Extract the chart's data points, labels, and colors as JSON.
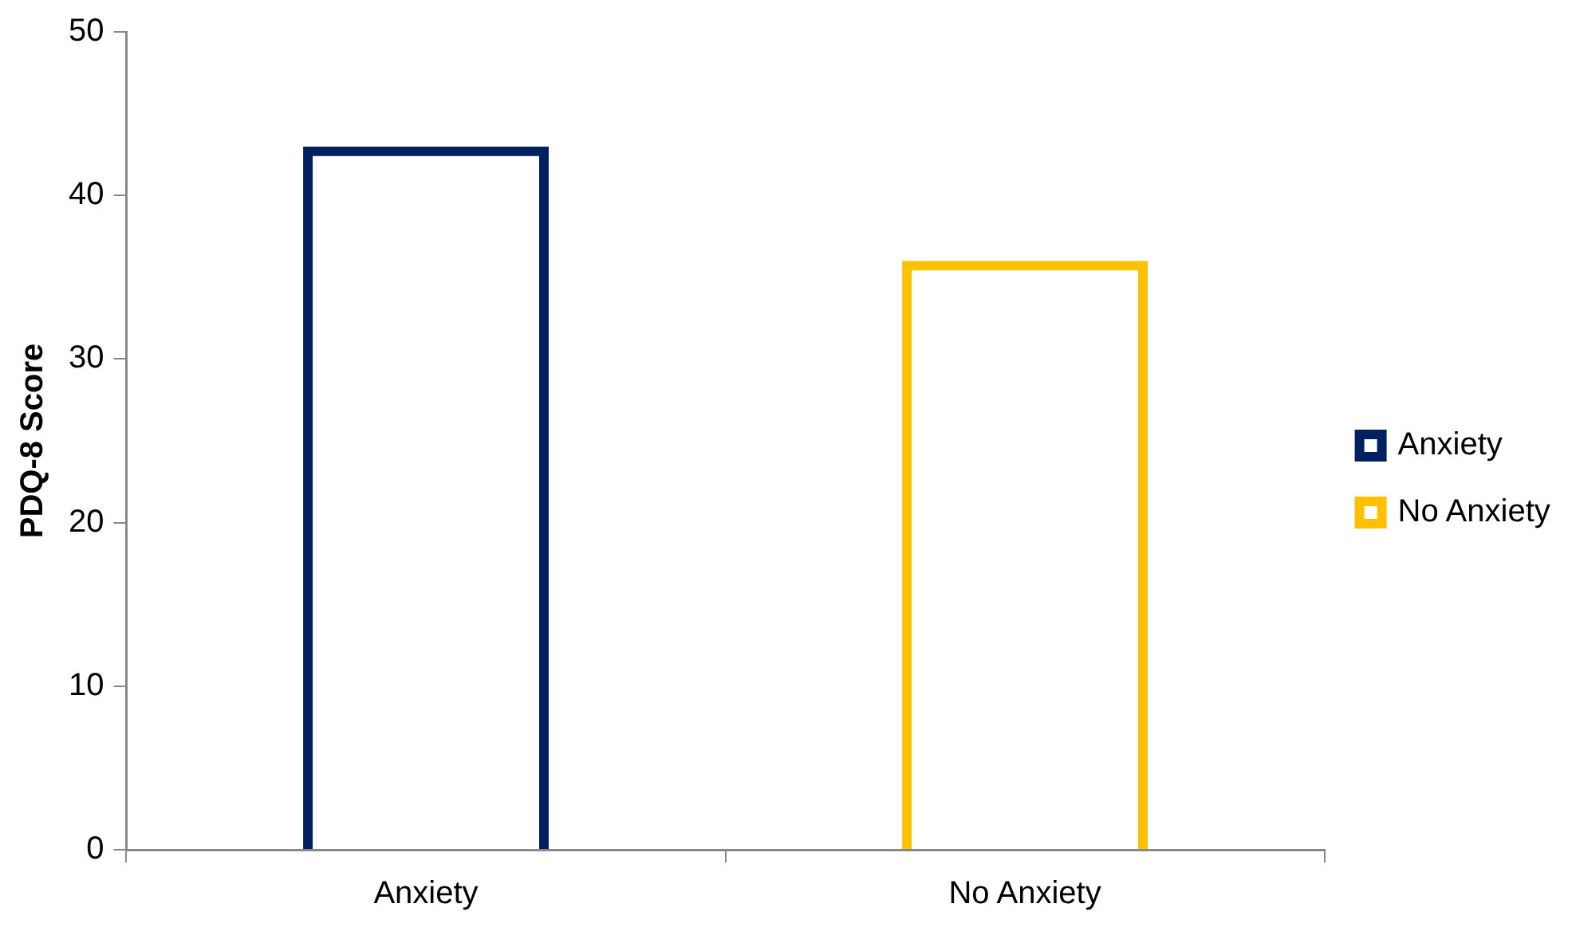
{
  "chart_data": {
    "type": "bar",
    "ylabel": "PDQ-8 Score",
    "categories": [
      "Anxiety",
      "No Anxiety"
    ],
    "series": [
      {
        "name": "Anxiety",
        "color": "#002060",
        "values": [
          43,
          null
        ]
      },
      {
        "name": "No Anxiety",
        "color": "#ffc000",
        "values": [
          null,
          36
        ]
      }
    ],
    "ylim": [
      0,
      50
    ],
    "yticks": [
      0,
      10,
      20,
      30,
      40,
      50
    ],
    "grid": false,
    "legend": "right"
  }
}
